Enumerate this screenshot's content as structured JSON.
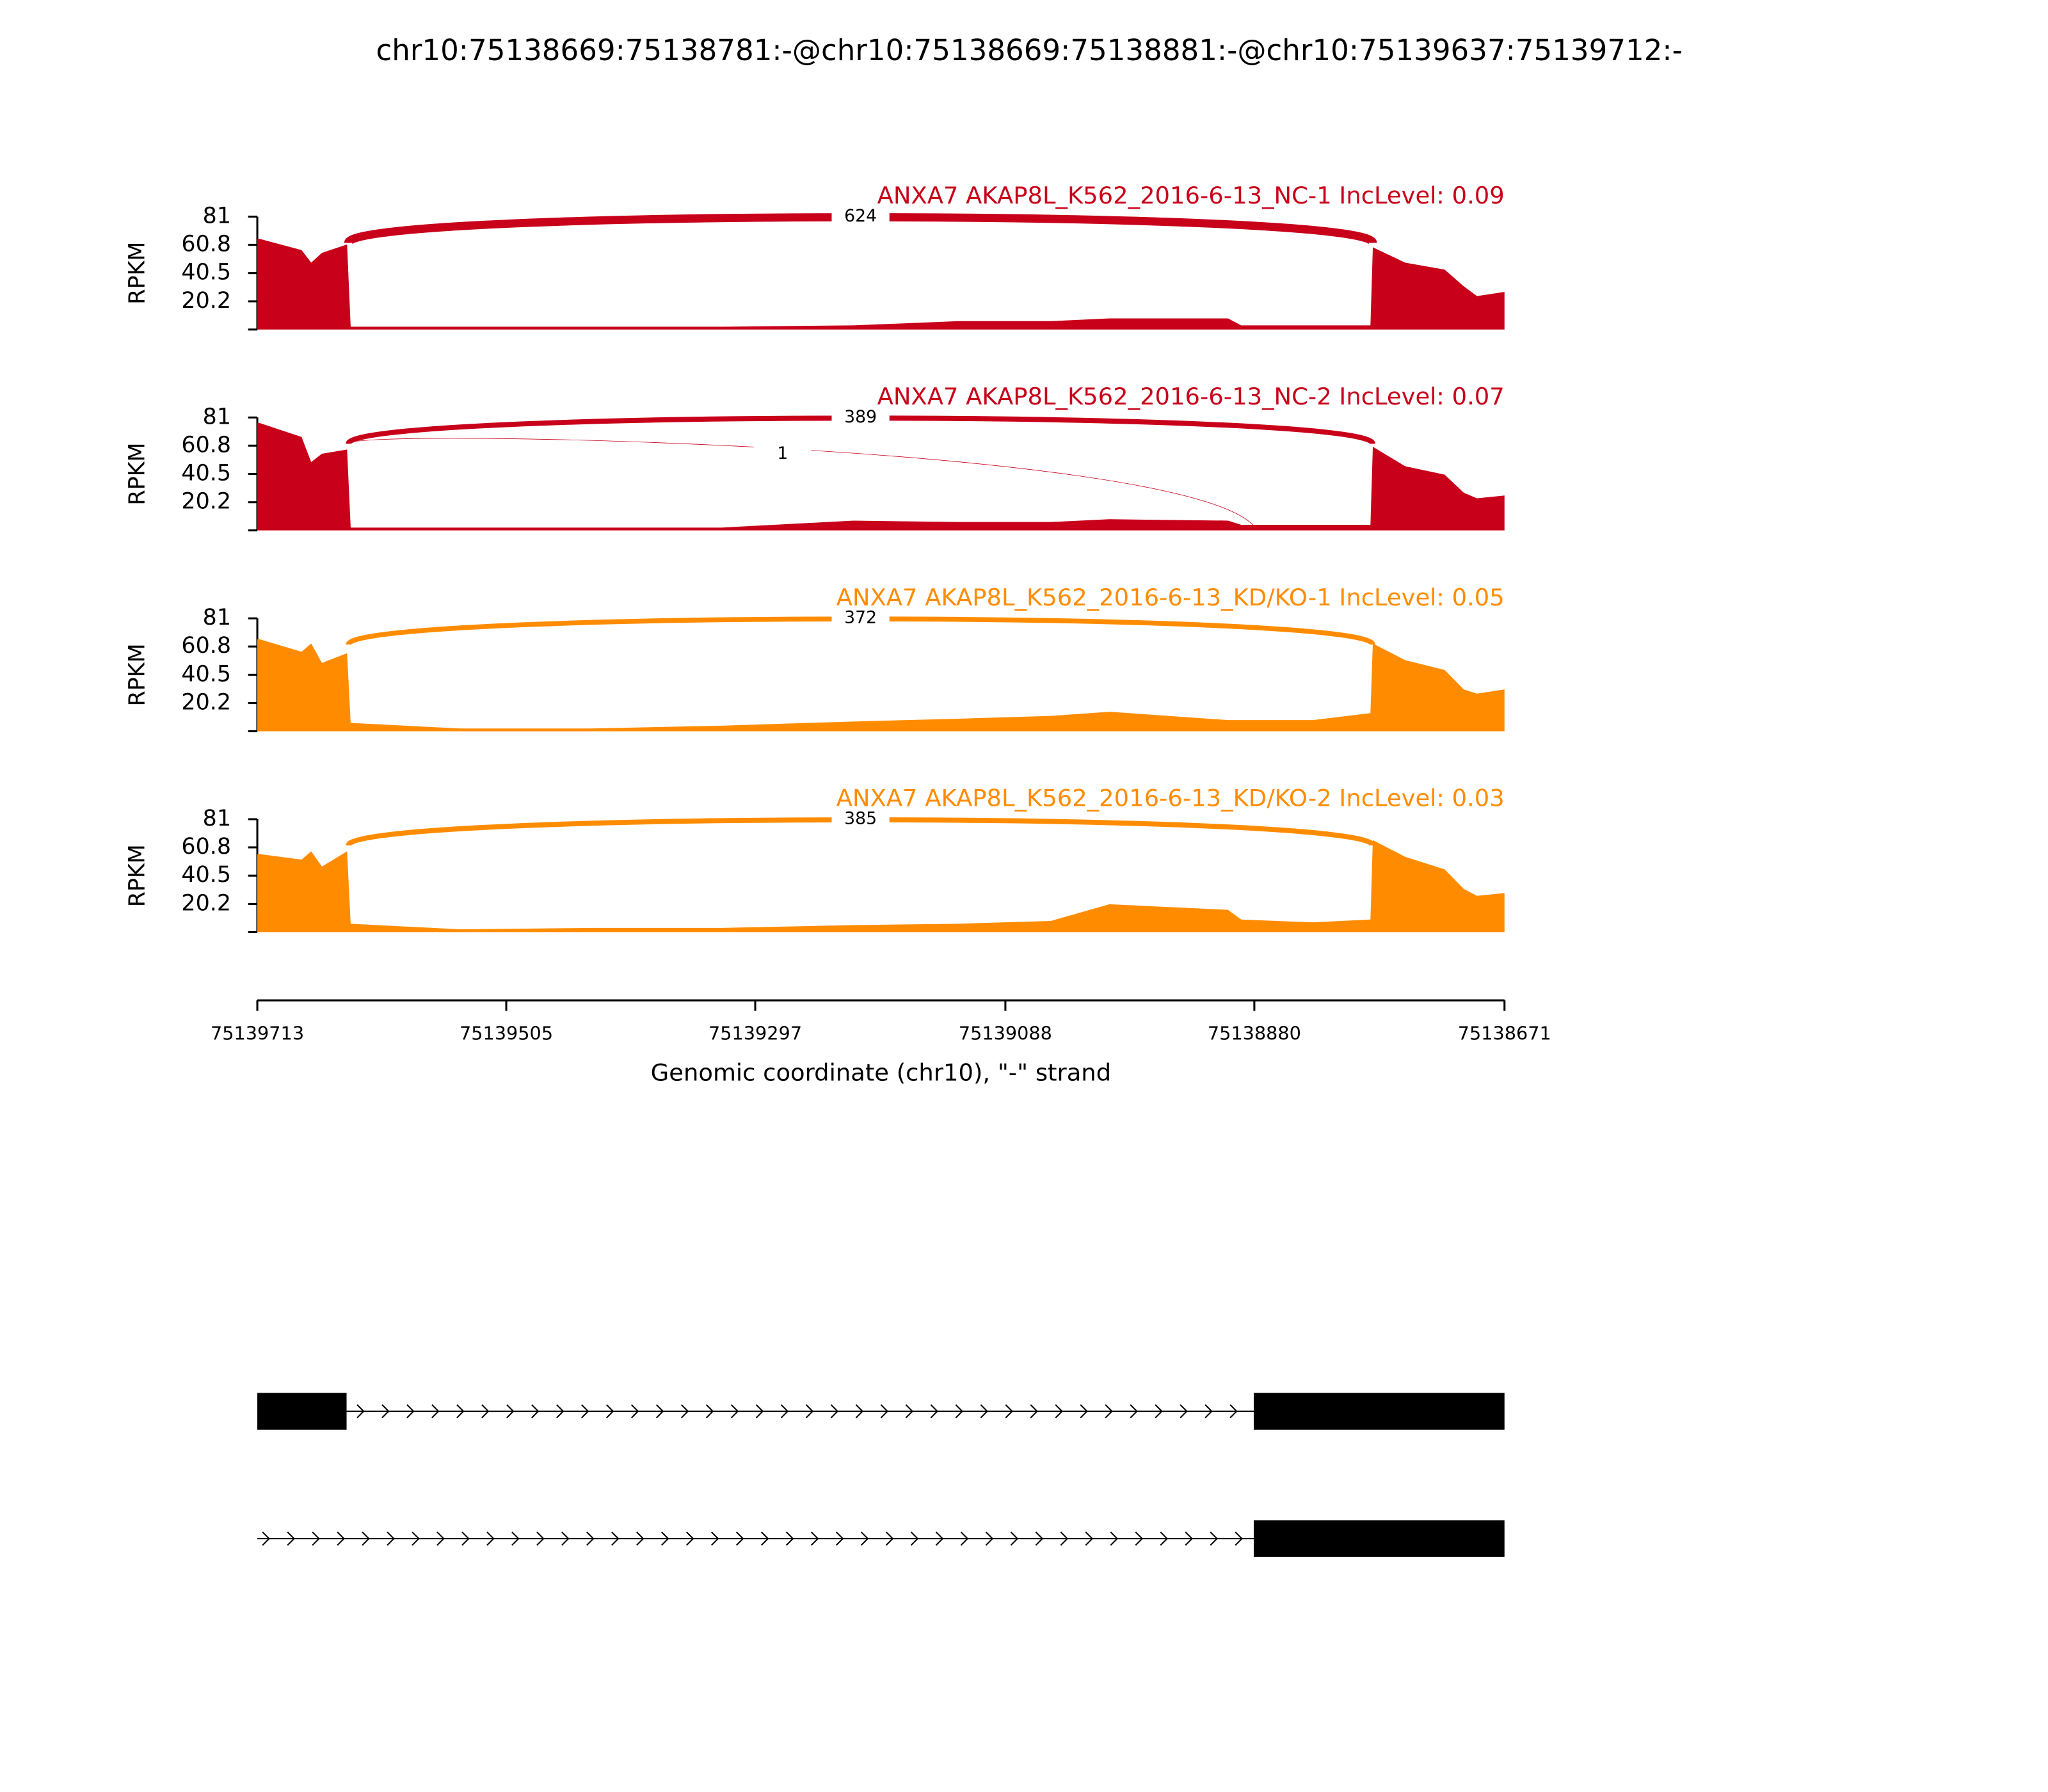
{
  "title": "chr10:75138669:75138781:-@chr10:75138669:75138881:-@chr10:75139637:75139712:-",
  "chart_data": [
    {
      "type": "area",
      "label": "ANXA7 AKAP8L_K562_2016-6-13_NC-1 IncLevel: 0.09",
      "ylabel": "RPKM",
      "color": "#c8001a",
      "x": [
        75139713,
        75139711,
        75139676,
        75139668,
        75139659,
        75139638,
        75139635,
        75139544,
        75139434,
        75139325,
        75139215,
        75139127,
        75139050,
        75139001,
        75138902,
        75138891,
        75138831,
        75138783,
        75138781,
        75138754,
        75138721,
        75138705,
        75138694,
        75138671
      ],
      "values": [
        65,
        65,
        57,
        48,
        55,
        61,
        2,
        2,
        2,
        2,
        3,
        6,
        6,
        8,
        8,
        3,
        3,
        3,
        59,
        48,
        43,
        31,
        24,
        27
      ],
      "junctions": [
        {
          "from": 75139637,
          "to": 75138781,
          "count": 624
        }
      ],
      "ylim": [
        0,
        81
      ],
      "yticks": [
        20.2,
        40.5,
        60.8,
        81
      ]
    },
    {
      "type": "area",
      "label": "ANXA7 AKAP8L_K562_2016-6-13_NC-2 IncLevel: 0.07",
      "ylabel": "RPKM",
      "color": "#c8001a",
      "x": [
        75139713,
        75139711,
        75139676,
        75139668,
        75139659,
        75139638,
        75139635,
        75139544,
        75139434,
        75139325,
        75139215,
        75139127,
        75139050,
        75139001,
        75138902,
        75138891,
        75138831,
        75138783,
        75138781,
        75138754,
        75138721,
        75138705,
        75138694,
        75138671
      ],
      "values": [
        77,
        77,
        67,
        49,
        55,
        58,
        2,
        2,
        2,
        2,
        7,
        6,
        6,
        8,
        7,
        4,
        4,
        4,
        60,
        46,
        40,
        27,
        23,
        25
      ],
      "junctions": [
        {
          "from": 75139637,
          "to": 75138781,
          "count": 389
        },
        {
          "from": 75139637,
          "to": 75138881,
          "count": 1
        }
      ],
      "ylim": [
        0,
        81
      ],
      "yticks": [
        20.2,
        40.5,
        60.8,
        81
      ]
    },
    {
      "type": "area",
      "label": "ANXA7 AKAP8L_K562_2016-6-13_KD/KO-1 IncLevel: 0.05",
      "ylabel": "RPKM",
      "color": "#ff8c00",
      "x": [
        75139713,
        75139711,
        75139676,
        75139668,
        75139659,
        75139638,
        75139635,
        75139544,
        75139434,
        75139325,
        75139215,
        75139127,
        75139050,
        75139001,
        75138902,
        75138891,
        75138831,
        75138783,
        75138781,
        75138754,
        75138721,
        75138705,
        75138694,
        75138671
      ],
      "values": [
        66,
        66,
        57,
        63,
        49,
        56,
        6,
        2,
        2,
        4,
        7,
        9,
        11,
        14,
        8,
        8,
        8,
        13,
        63,
        51,
        44,
        30,
        27,
        30
      ],
      "junctions": [
        {
          "from": 75139637,
          "to": 75138781,
          "count": 372
        }
      ],
      "ylim": [
        0,
        81
      ],
      "yticks": [
        20.2,
        40.5,
        60.8,
        81
      ]
    },
    {
      "type": "area",
      "label": "ANXA7 AKAP8L_K562_2016-6-13_KD/KO-2 IncLevel: 0.03",
      "ylabel": "RPKM",
      "color": "#ff8c00",
      "x": [
        75139713,
        75139711,
        75139676,
        75139668,
        75139659,
        75139638,
        75139635,
        75139544,
        75139434,
        75139325,
        75139215,
        75139127,
        75139050,
        75139001,
        75138902,
        75138891,
        75138831,
        75138783,
        75138781,
        75138754,
        75138721,
        75138705,
        75138694,
        75138671
      ],
      "values": [
        56,
        56,
        52,
        58,
        47,
        58,
        6,
        2,
        3,
        3,
        5,
        6,
        8,
        20,
        16,
        9,
        7,
        9,
        66,
        54,
        45,
        31,
        26,
        28
      ],
      "junctions": [
        {
          "from": 75139637,
          "to": 75138781,
          "count": 385
        }
      ],
      "ylim": [
        0,
        81
      ],
      "yticks": [
        20.2,
        40.5,
        60.8,
        81
      ],
      "xlabel": "Genomic coordinate (chr10), \"-\" strand",
      "xlim": [
        75139713,
        75138671
      ],
      "xticks": [
        75139713,
        75139505,
        75139297,
        75139088,
        75138880,
        75138671
      ]
    }
  ]
}
